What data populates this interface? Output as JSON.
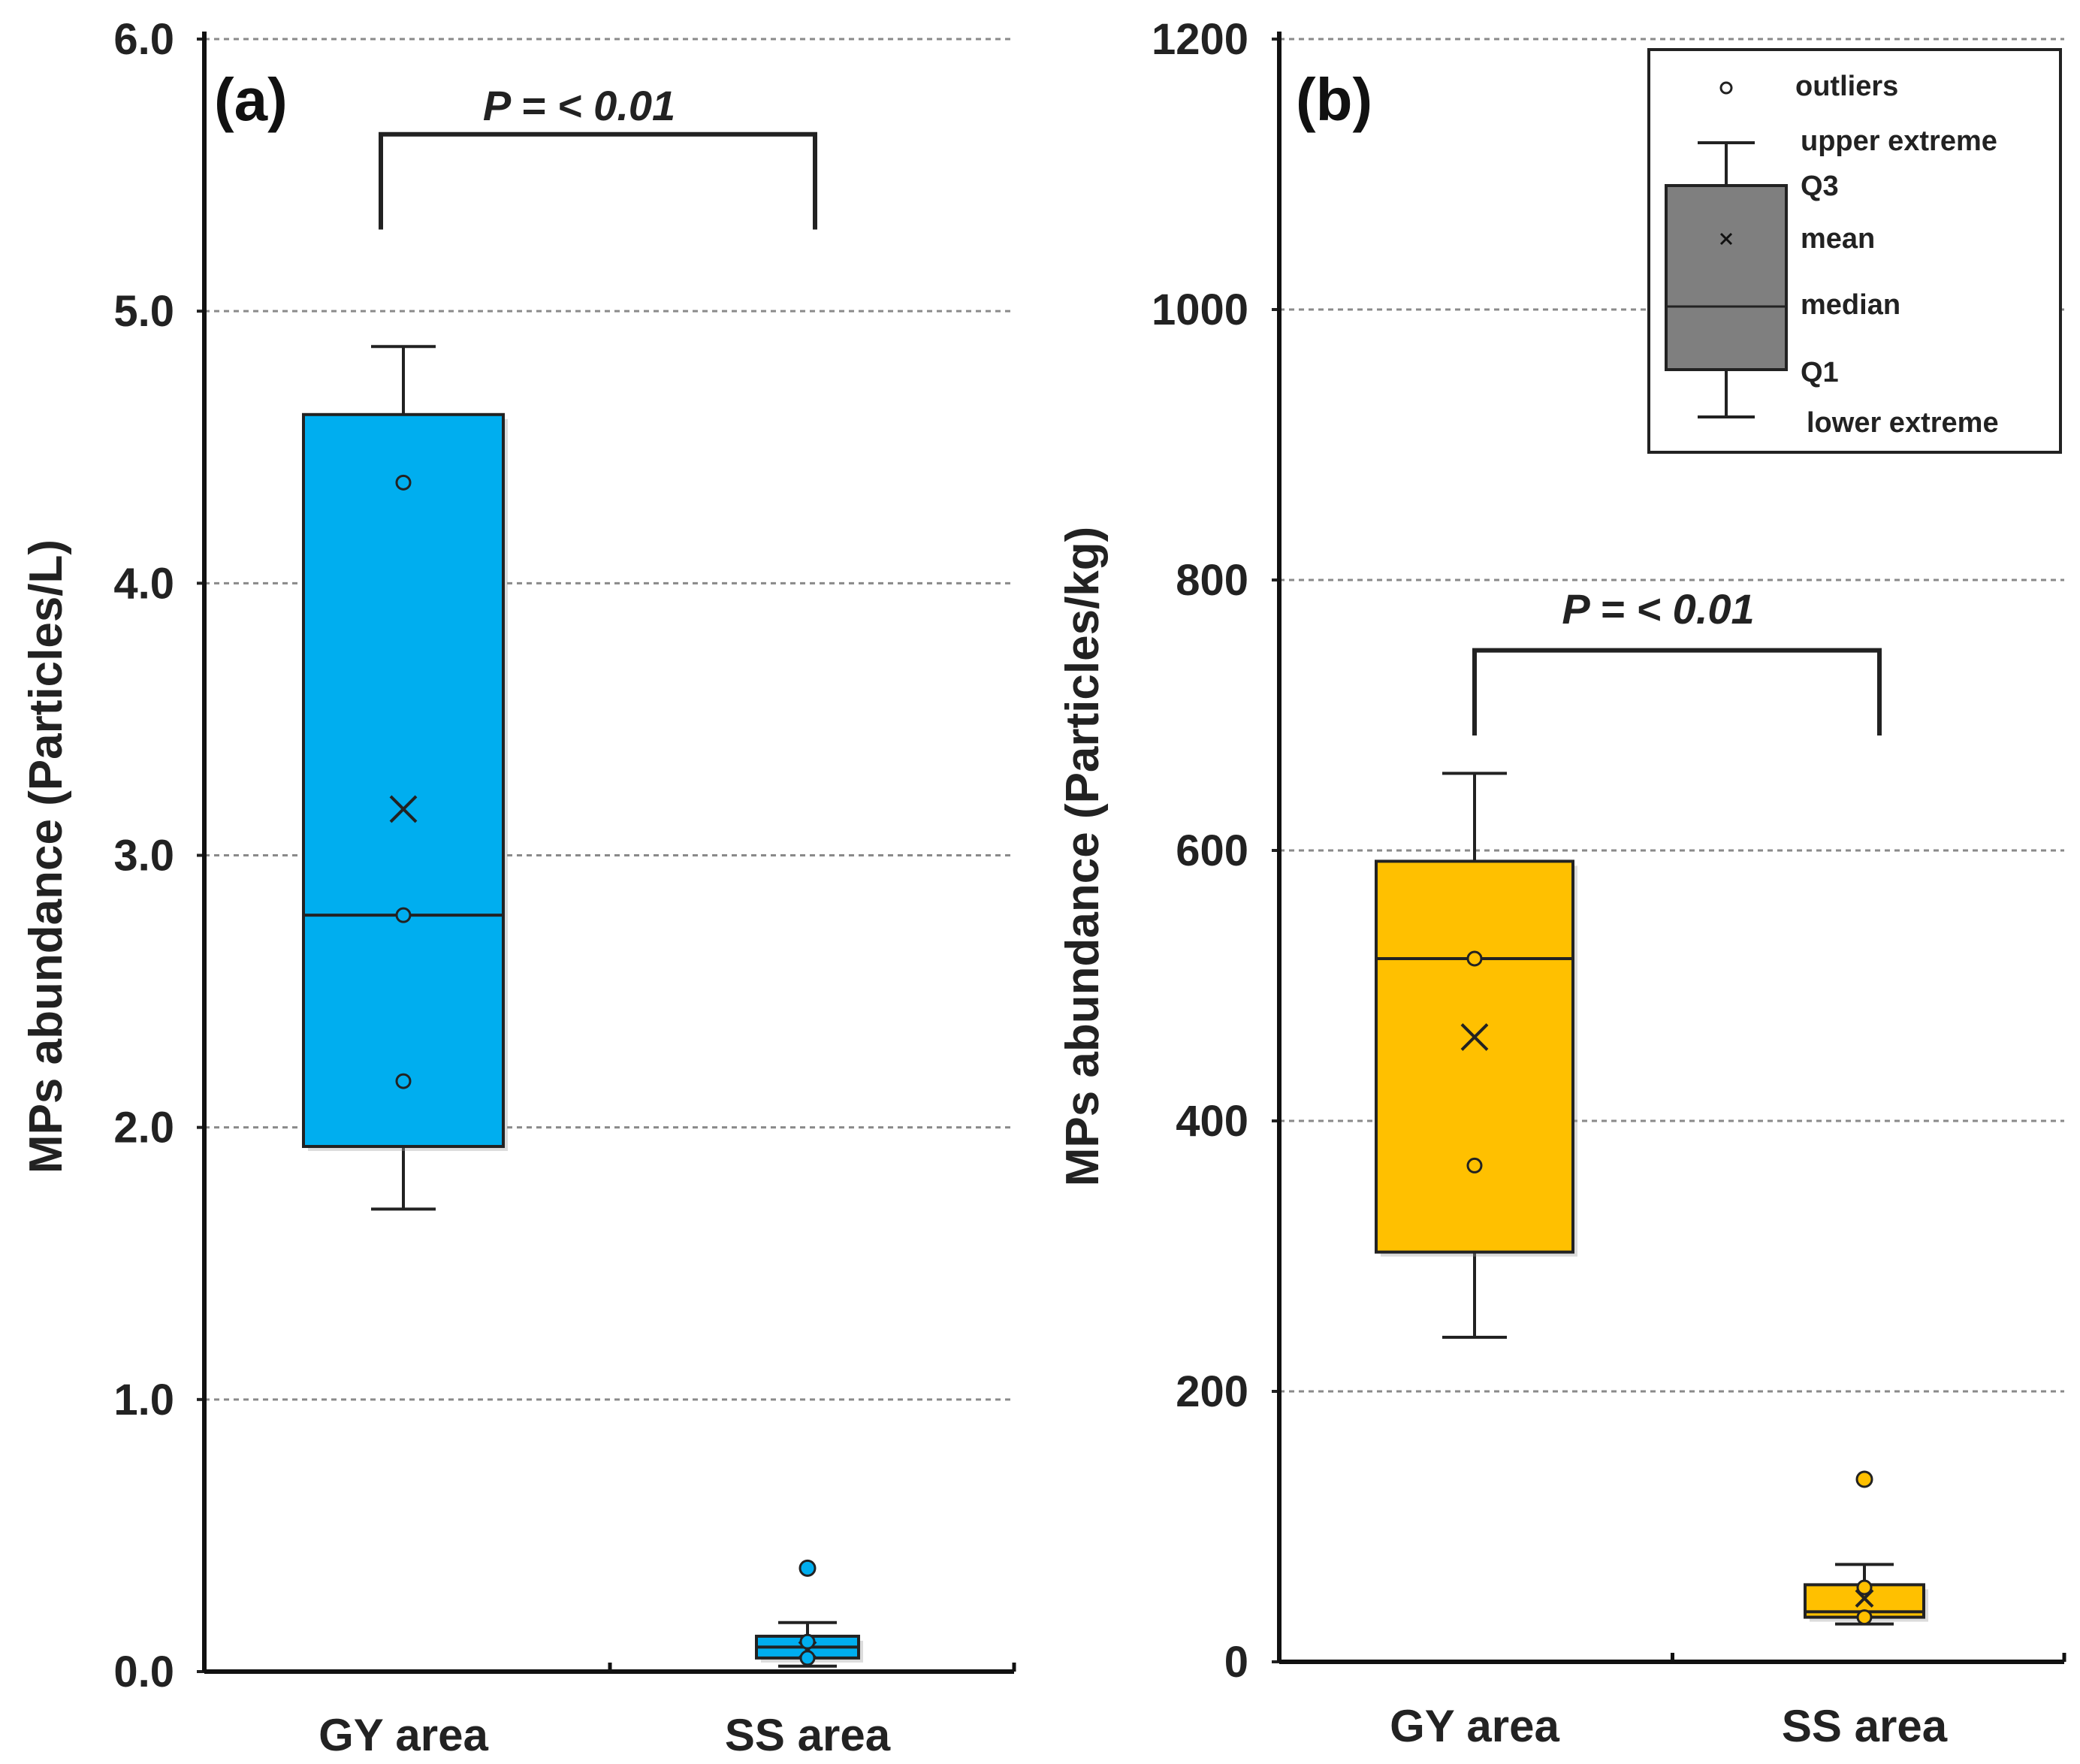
{
  "figure": {
    "panels": [
      {
        "label": "(a)"
      },
      {
        "label": "(b)"
      }
    ]
  },
  "chart_data": [
    {
      "type": "box",
      "panel_label": "(a)",
      "ylabel": "MPs abundance (Particles/L)",
      "ylim": [
        0,
        6
      ],
      "yticks": [
        0,
        1,
        2,
        3,
        4,
        5,
        6
      ],
      "ytick_labels": [
        "0.0",
        "1.0",
        "2.0",
        "3.0",
        "4.0",
        "5.0",
        "6.0"
      ],
      "grid": "horizontal dashed",
      "categories": [
        "GY area",
        "SS area"
      ],
      "color": "#00aeef",
      "boxes": [
        {
          "category": "GY area",
          "lower_extreme": 1.7,
          "q1": 1.93,
          "median": 2.78,
          "q3": 4.62,
          "upper_extreme": 4.87,
          "mean": 3.17,
          "points": [
            4.37,
            2.78,
            2.17
          ],
          "outliers": []
        },
        {
          "category": "SS area",
          "lower_extreme": 0.02,
          "q1": 0.05,
          "median": 0.09,
          "q3": 0.13,
          "upper_extreme": 0.18,
          "mean": 0.08,
          "points": [
            0.11,
            0.05
          ],
          "outliers": [
            0.38
          ]
        }
      ],
      "significance": {
        "label": "P = < 0.01",
        "y_top": 5.65,
        "y_bottom": 5.3
      }
    },
    {
      "type": "box",
      "panel_label": "(b)",
      "ylabel": "MPs abundance (Particles/kg)",
      "ylim": [
        0,
        1200
      ],
      "yticks": [
        0,
        200,
        400,
        600,
        800,
        1000,
        1200
      ],
      "ytick_labels": [
        "0",
        "200",
        "400",
        "600",
        "800",
        "1000",
        "1200"
      ],
      "grid": "horizontal dashed",
      "categories": [
        "GY area",
        "SS area"
      ],
      "color": "#ffc000",
      "boxes": [
        {
          "category": "GY area",
          "lower_extreme": 240,
          "q1": 303,
          "median": 520,
          "q3": 592,
          "upper_extreme": 657,
          "mean": 462,
          "points": [
            520,
            367
          ],
          "outliers": []
        },
        {
          "category": "SS area",
          "lower_extreme": 28,
          "q1": 33,
          "median": 37,
          "q3": 57,
          "upper_extreme": 72,
          "mean": 47,
          "points": [
            55,
            33
          ],
          "outliers": [
            135
          ]
        }
      ],
      "significance": {
        "label": "P = < 0.01",
        "y_top": 748,
        "y_bottom": 685
      },
      "legend": {
        "position": "top-right",
        "entries": [
          "outliers",
          "upper extreme",
          "Q3",
          "mean",
          "median",
          "Q1",
          "lower extreme"
        ]
      }
    }
  ]
}
